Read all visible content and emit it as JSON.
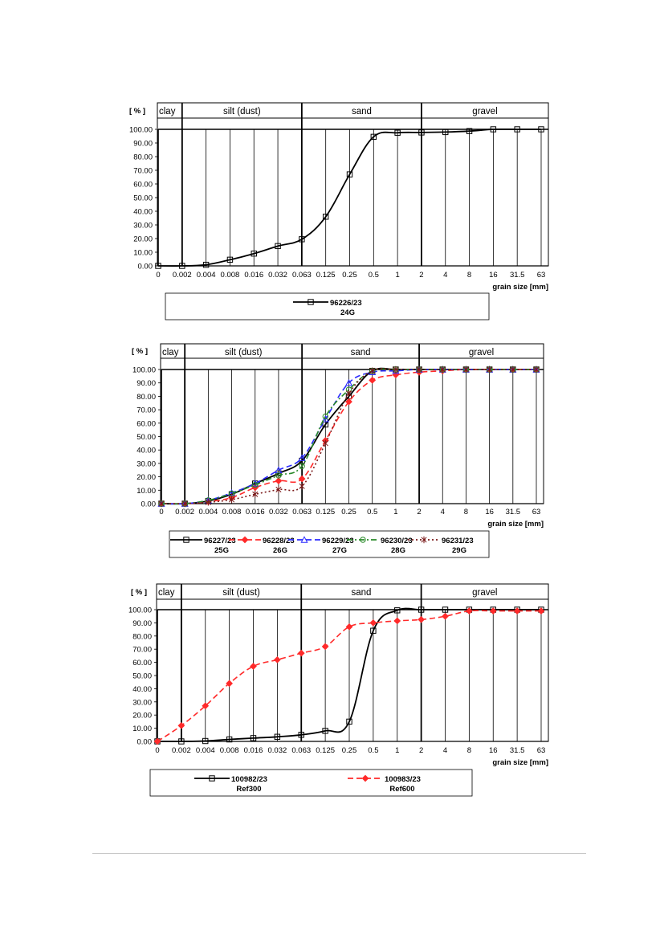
{
  "chart_data": [
    {
      "type": "line",
      "ylabel": "[ % ]",
      "xlabel": "grain size [mm]",
      "x_categories": [
        "0",
        "0.002",
        "0.004",
        "0.008",
        "0.016",
        "0.032",
        "0.063",
        "0.125",
        "0.25",
        "0.5",
        "1",
        "2",
        "4",
        "8",
        "16",
        "31.5",
        "63"
      ],
      "y_ticks": [
        "0.00",
        "10.00",
        "20.00",
        "30.00",
        "40.00",
        "50.00",
        "60.00",
        "70.00",
        "80.00",
        "90.00",
        "100.00"
      ],
      "ylim": [
        0,
        100
      ],
      "bands": [
        {
          "label": "clay",
          "from": "0",
          "to": "0.002"
        },
        {
          "label": "silt (dust)",
          "from": "0.002",
          "to": "0.063"
        },
        {
          "label": "sand",
          "from": "0.063",
          "to": "2"
        },
        {
          "label": "gravel",
          "from": "2",
          "to": "63"
        }
      ],
      "legend_position": "bottom",
      "series": [
        {
          "name": "96226/23",
          "sub": "24G",
          "color": "#000000",
          "style": "solid",
          "marker": "square",
          "values": [
            0,
            0,
            0.8,
            4.5,
            9.0,
            14.5,
            19.5,
            36,
            67,
            94.5,
            97.5,
            97.7,
            98.0,
            98.7,
            100,
            100,
            100
          ]
        }
      ]
    },
    {
      "type": "line",
      "ylabel": "[ % ]",
      "xlabel": "grain size [mm]",
      "x_categories": [
        "0",
        "0.002",
        "0.004",
        "0.008",
        "0.016",
        "0.032",
        "0.063",
        "0.125",
        "0.25",
        "0.5",
        "1",
        "2",
        "4",
        "8",
        "16",
        "31.5",
        "63"
      ],
      "y_ticks": [
        "0.00",
        "10.00",
        "20.00",
        "30.00",
        "40.00",
        "50.00",
        "60.00",
        "70.00",
        "80.00",
        "90.00",
        "100.00"
      ],
      "ylim": [
        0,
        100
      ],
      "bands": [
        {
          "label": "clay",
          "from": "0",
          "to": "0.002"
        },
        {
          "label": "silt (dust)",
          "from": "0.002",
          "to": "0.063"
        },
        {
          "label": "sand",
          "from": "0.063",
          "to": "2"
        },
        {
          "label": "gravel",
          "from": "2",
          "to": "63"
        }
      ],
      "legend_position": "bottom",
      "series": [
        {
          "name": "96227/23",
          "sub": "25G",
          "color": "#000000",
          "style": "solid",
          "marker": "square",
          "values": [
            0,
            0,
            2.0,
            7.0,
            15.0,
            22.5,
            32.0,
            59.0,
            80.0,
            99.0,
            100,
            100,
            100,
            100,
            100,
            100,
            100
          ]
        },
        {
          "name": "96228/23",
          "sub": "26G",
          "color": "#ff2a2a",
          "style": "dashed",
          "marker": "diamond",
          "values": [
            0,
            0,
            1.5,
            4.5,
            12.0,
            17.0,
            18.5,
            47.0,
            76.0,
            92.0,
            96.0,
            98.0,
            99.0,
            100,
            100,
            100,
            100
          ]
        },
        {
          "name": "96229/23",
          "sub": "27G",
          "color": "#2a2aff",
          "style": "dashed",
          "marker": "triangle",
          "values": [
            0,
            0,
            2.5,
            8.0,
            15.0,
            25.0,
            34.0,
            63.0,
            90.0,
            98.0,
            99.0,
            100,
            100,
            100,
            100,
            100,
            100
          ]
        },
        {
          "name": "96230/23",
          "sub": "28G",
          "color": "#2a8a2a",
          "style": "dashdot",
          "marker": "circle",
          "values": [
            0,
            0,
            2.5,
            7.5,
            14.0,
            21.0,
            28.0,
            65.0,
            85.0,
            99.0,
            100,
            100,
            100,
            100,
            100,
            100,
            100
          ]
        },
        {
          "name": "96231/23",
          "sub": "29G",
          "color": "#7a1a1a",
          "style": "dotted",
          "marker": "star",
          "values": [
            0,
            0,
            1.0,
            3.0,
            7.0,
            10.5,
            13.0,
            45.0,
            82.0,
            99.0,
            100,
            100,
            100,
            100,
            100,
            100,
            100
          ]
        }
      ]
    },
    {
      "type": "line",
      "ylabel": "[ % ]",
      "xlabel": "grain size [mm]",
      "x_categories": [
        "0",
        "0.002",
        "0.004",
        "0.008",
        "0.016",
        "0.032",
        "0.063",
        "0.125",
        "0.25",
        "0.5",
        "1",
        "2",
        "4",
        "8",
        "16",
        "31.5",
        "63"
      ],
      "y_ticks": [
        "0.00",
        "10.00",
        "20.00",
        "30.00",
        "40.00",
        "50.00",
        "60.00",
        "70.00",
        "80.00",
        "90.00",
        "100.00"
      ],
      "ylim": [
        0,
        100
      ],
      "bands": [
        {
          "label": "clay",
          "from": "0",
          "to": "0.002"
        },
        {
          "label": "silt (dust)",
          "from": "0.002",
          "to": "0.063"
        },
        {
          "label": "sand",
          "from": "0.063",
          "to": "2"
        },
        {
          "label": "gravel",
          "from": "2",
          "to": "63"
        }
      ],
      "legend_position": "bottom",
      "series": [
        {
          "name": "100982/23",
          "sub": "Ref300",
          "color": "#000000",
          "style": "solid",
          "marker": "square",
          "values": [
            0,
            0,
            0.3,
            1.5,
            2.5,
            3.5,
            5.0,
            8.0,
            15.0,
            84.0,
            99.5,
            100,
            100,
            100,
            100,
            100,
            100
          ]
        },
        {
          "name": "100983/23",
          "sub": "Ref600",
          "color": "#ff2a2a",
          "style": "dashed",
          "marker": "diamond",
          "values": [
            0,
            12.0,
            27.0,
            44.0,
            57.0,
            62.0,
            67.0,
            72.0,
            87.0,
            90.0,
            91.5,
            92.5,
            95.0,
            99.0,
            99.0,
            99.0,
            99.0
          ]
        }
      ]
    }
  ]
}
